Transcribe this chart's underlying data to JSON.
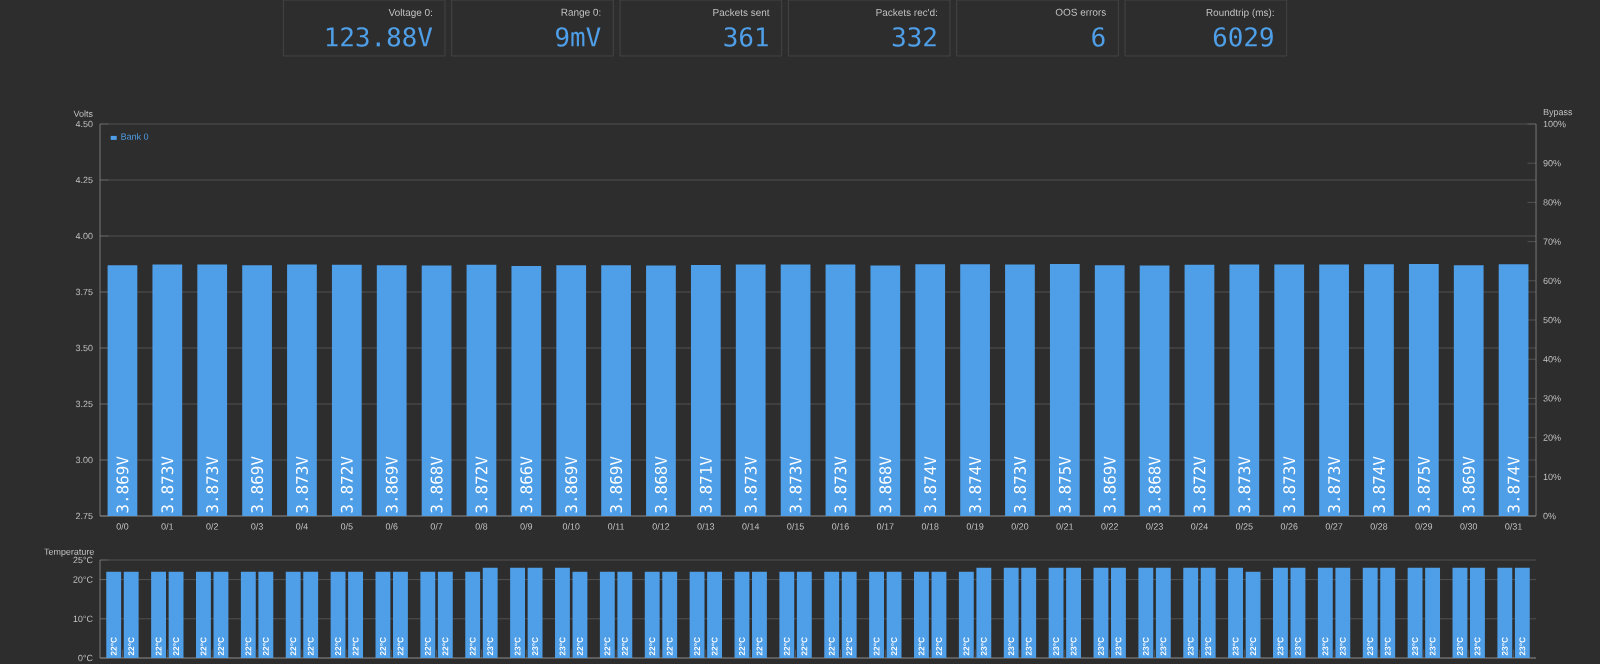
{
  "chart_data": [
    {
      "type": "other",
      "annotations": [
        "Voltage 0:",
        "123.88V",
        "Range 0:",
        "9mV",
        "Packets sent",
        "361",
        "Packets rec'd:",
        "332",
        "OOS errors",
        "6",
        "Roundtrip (ms):",
        "6029"
      ]
    },
    {
      "type": "bar",
      "ylabel": "Volts",
      "y2label": "Bypass",
      "categories": [
        "0/0",
        "0/1",
        "0/2",
        "0/3",
        "0/4",
        "0/5",
        "0/6",
        "0/7",
        "0/8",
        "0/9",
        "0/10",
        "0/11",
        "0/12",
        "0/13",
        "0/14",
        "0/15",
        "0/16",
        "0/17",
        "0/18",
        "0/19",
        "0/20",
        "0/21",
        "0/22",
        "0/23",
        "0/24",
        "0/25",
        "0/26",
        "0/27",
        "0/28",
        "0/29",
        "0/30",
        "0/31"
      ],
      "series": [
        {
          "name": "Bank 0",
          "color": "#4f9fe8",
          "values": [
            3.869,
            3.873,
            3.873,
            3.869,
            3.873,
            3.872,
            3.869,
            3.868,
            3.872,
            3.866,
            3.869,
            3.869,
            3.868,
            3.871,
            3.873,
            3.873,
            3.873,
            3.868,
            3.874,
            3.874,
            3.873,
            3.875,
            3.869,
            3.868,
            3.872,
            3.873,
            3.873,
            3.873,
            3.874,
            3.875,
            3.869,
            3.874
          ],
          "value_labels": [
            "3.869V",
            "3.873V",
            "3.873V",
            "3.869V",
            "3.873V",
            "3.872V",
            "3.869V",
            "3.868V",
            "3.872V",
            "3.866V",
            "3.869V",
            "3.869V",
            "3.868V",
            "3.871V",
            "3.873V",
            "3.873V",
            "3.873V",
            "3.868V",
            "3.874V",
            "3.874V",
            "3.873V",
            "3.875V",
            "3.869V",
            "3.868V",
            "3.872V",
            "3.873V",
            "3.873V",
            "3.873V",
            "3.874V",
            "3.875V",
            "3.869V",
            "3.874V"
          ]
        }
      ],
      "ylim": [
        2.75,
        4.5
      ],
      "yticks": [
        {
          "value": 2.75,
          "label": "2.75"
        },
        {
          "value": 3,
          "label": "3.00"
        },
        {
          "value": 3.25,
          "label": "3.25"
        },
        {
          "value": 3.5,
          "label": "3.50"
        },
        {
          "value": 3.75,
          "label": "3.75"
        },
        {
          "value": 4,
          "label": "4.00"
        },
        {
          "value": 4.25,
          "label": "4.25"
        },
        {
          "value": 4.5,
          "label": "4.50"
        }
      ],
      "y2lim": [
        0,
        100
      ],
      "y2ticks": [
        {
          "value": 0,
          "label": "0%"
        },
        {
          "value": 10,
          "label": "10%"
        },
        {
          "value": 20,
          "label": "20%"
        },
        {
          "value": 30,
          "label": "30%"
        },
        {
          "value": 40,
          "label": "40%"
        },
        {
          "value": 50,
          "label": "50%"
        },
        {
          "value": 60,
          "label": "60%"
        },
        {
          "value": 70,
          "label": "70%"
        },
        {
          "value": 80,
          "label": "80%"
        },
        {
          "value": 90,
          "label": "90%"
        },
        {
          "value": 100,
          "label": "100%"
        }
      ],
      "grid": "y",
      "legend": "top left"
    },
    {
      "type": "bar",
      "title": "Temperature",
      "categories": [
        null,
        null,
        null,
        null,
        null,
        null,
        null,
        null,
        null,
        null,
        null,
        null,
        null,
        null,
        null,
        null,
        null,
        null,
        null,
        null,
        null,
        null,
        null,
        null,
        null,
        null,
        null,
        null,
        null,
        null,
        null,
        null
      ],
      "series": [
        {
          "color": "#4f9fe8",
          "values": [
            22,
            22,
            22,
            22,
            22,
            22,
            22,
            22,
            22,
            23,
            23,
            22,
            22,
            22,
            22,
            22,
            22,
            22,
            22,
            22,
            23,
            23,
            23,
            23,
            23,
            23,
            23,
            23,
            23,
            23,
            23,
            23
          ],
          "value_labels": [
            "22°C",
            "22°C",
            "22°C",
            "22°C",
            "22°C",
            "22°C",
            "22°C",
            "22°C",
            "22°C",
            "23°C",
            "23°C",
            "22°C",
            "22°C",
            "22°C",
            "22°C",
            "22°C",
            "22°C",
            "22°C",
            "22°C",
            "22°C",
            "23°C",
            "23°C",
            "23°C",
            "23°C",
            "23°C",
            "23°C",
            "23°C",
            "23°C",
            "23°C",
            "23°C",
            "23°C",
            "23°C"
          ]
        },
        {
          "color": "#4f9fe8",
          "values": [
            22,
            22,
            22,
            22,
            22,
            22,
            22,
            22,
            23,
            23,
            22,
            22,
            22,
            22,
            22,
            22,
            22,
            22,
            22,
            23,
            23,
            23,
            23,
            23,
            23,
            22,
            23,
            23,
            23,
            23,
            23,
            23
          ],
          "value_labels": [
            "22°C",
            "22°C",
            "22°C",
            "22°C",
            "22°C",
            "22°C",
            "22°C",
            "22°C",
            "23°C",
            "23°C",
            "22°C",
            "22°C",
            "22°C",
            "22°C",
            "22°C",
            "22°C",
            "22°C",
            "22°C",
            "22°C",
            "23°C",
            "23°C",
            "23°C",
            "23°C",
            "23°C",
            "23°C",
            "22°C",
            "23°C",
            "23°C",
            "23°C",
            "23°C",
            "23°C",
            "23°C"
          ]
        }
      ],
      "ylim": [
        0,
        25
      ],
      "yticks": [
        {
          "value": 0,
          "label": "0°C"
        },
        {
          "value": 10,
          "label": "10°C"
        },
        {
          "value": 20,
          "label": "20°C"
        },
        {
          "value": 25,
          "label": "25°C"
        }
      ],
      "grid": "y",
      "tick_labels": "y"
    }
  ]
}
